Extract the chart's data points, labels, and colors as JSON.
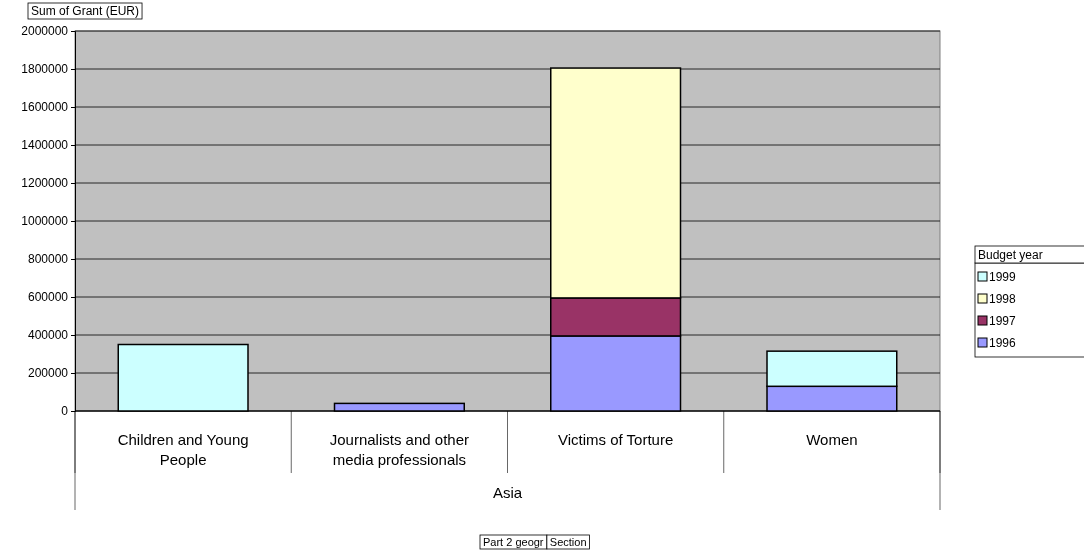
{
  "chart_data": {
    "type": "bar",
    "stacked": true,
    "ylabel": "Sum of Grant (EUR)",
    "legend_title": "Budget year",
    "legend": "right",
    "grid": "y",
    "categories": [
      "Children and Young People",
      "Journalists and other media professionals",
      "Victims of Torture",
      "Women"
    ],
    "series": [
      {
        "name": "1996",
        "color": "#9999ff",
        "values": [
          null,
          40000,
          395000,
          130000
        ]
      },
      {
        "name": "1997",
        "color": "#993366",
        "values": [
          null,
          null,
          200000,
          null
        ]
      },
      {
        "name": "1998",
        "color": "#ffffcc",
        "values": [
          null,
          null,
          1210000,
          null
        ]
      },
      {
        "name": "1999",
        "color": "#ccffff",
        "values": [
          350000,
          null,
          null,
          185000
        ]
      }
    ],
    "ylim": [
      0,
      2000000
    ],
    "yticks": [
      0,
      200000,
      400000,
      600000,
      800000,
      1000000,
      1200000,
      1400000,
      1600000,
      1800000,
      2000000
    ],
    "annotations": [
      "Asia",
      "Part 2 geogr",
      "Section"
    ]
  }
}
